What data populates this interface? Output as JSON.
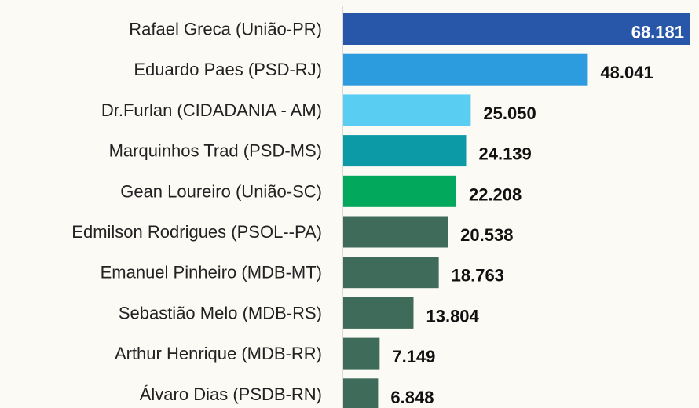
{
  "chart_data": {
    "type": "bar",
    "orientation": "horizontal",
    "categories": [
      "Rafael Greca (União-PR)",
      "Eduardo Paes (PSD-RJ)",
      "Dr.Furlan (CIDADANIA - AM)",
      "Marquinhos Trad (PSD-MS)",
      "Gean Loureiro (União-SC)",
      "Edmilson Rodrigues (PSOL--PA)",
      "Emanuel Pinheiro (MDB-MT)",
      "Sebastião Melo (MDB-RS)",
      "Arthur Henrique (MDB-RR)",
      "Álvaro Dias (PSDB-RN)"
    ],
    "values": [
      68181,
      48041,
      25050,
      24139,
      22208,
      20538,
      18763,
      13804,
      7149,
      6848
    ],
    "value_labels": [
      "68.181",
      "48.041",
      "25.050",
      "24.139",
      "22.208",
      "20.538",
      "18.763",
      "13.804",
      "7.149",
      "6.848"
    ],
    "colors": [
      "#2856a8",
      "#2d9cdf",
      "#5acdf3",
      "#0b9aa6",
      "#02a85c",
      "#3e6b5a",
      "#3e6b5a",
      "#3e6b5a",
      "#3e6b5a",
      "#3e6b5a"
    ]
  }
}
